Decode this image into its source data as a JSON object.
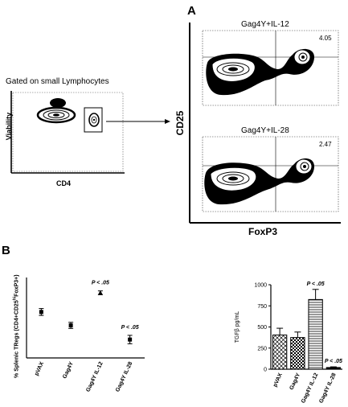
{
  "panel_a": {
    "letter": "A",
    "gate_label": "Gated on small Lymphocytes",
    "left_plot": {
      "ylabel": "Viability",
      "xlabel": "CD4"
    },
    "right_plots": {
      "ylabel": "CD25",
      "xlabel": "FoxP3",
      "top": {
        "title": "Gag4Y+IL-12",
        "percent": "4.05"
      },
      "bottom": {
        "title": "Gag4Y+IL-28",
        "percent": "2.47"
      }
    }
  },
  "panel_b": {
    "letter": "B",
    "colors": {
      "ink": "#000000",
      "background": "#ffffff"
    }
  },
  "chart_data": [
    {
      "type": "scatter",
      "title": "",
      "xlabel": "",
      "ylabel_parts": {
        "pre": "% Splenic TRegs (CD4+CD25",
        "sup": "hi",
        "post": "FoxP3+)"
      },
      "categories": [
        "pVAX",
        "Gag4Y",
        "Gag4Y IL-12",
        "Gag4Y IL-28"
      ],
      "values": [
        3.5,
        3.15,
        4.0,
        2.78
      ],
      "errors": [
        0.09,
        0.08,
        0.05,
        0.11
      ],
      "annotations": [
        {
          "category": "Gag4Y IL-12",
          "text": "P < .05"
        },
        {
          "category": "Gag4Y IL-28",
          "text": "P < .05"
        }
      ],
      "ylim": [
        2.3,
        4.4
      ],
      "grid": false
    },
    {
      "type": "bar",
      "title": "",
      "xlabel": "",
      "ylabel": "TGFβ pg/mL",
      "categories": [
        "pVAX",
        "Gag4Y",
        "Gag4Y IL-12",
        "Gag4Y IL-28"
      ],
      "values": [
        405,
        375,
        825,
        20
      ],
      "errors": [
        80,
        65,
        120,
        8
      ],
      "patterns": [
        "crosshatch",
        "checker",
        "hlines",
        "solid"
      ],
      "annotations": [
        {
          "category": "Gag4Y IL-12",
          "text": "P < .05"
        },
        {
          "category": "Gag4Y IL-28",
          "text": "P < .05"
        }
      ],
      "yticks": [
        "0",
        "250",
        "500",
        "750",
        "1000"
      ],
      "ylim": [
        0,
        1000
      ],
      "grid": false
    }
  ]
}
